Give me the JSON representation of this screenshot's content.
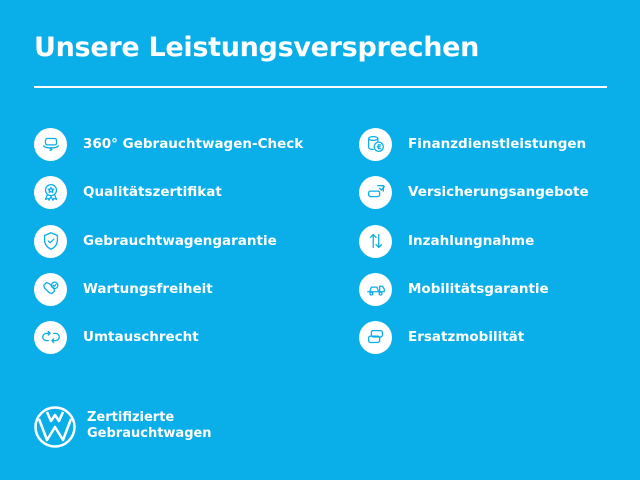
{
  "header": {
    "title": "Unsere Leistungsversprechen"
  },
  "left_items": [
    {
      "label": "360° Gebrauchtwagen-Check",
      "icon": "car-360-icon"
    },
    {
      "label": "Qualitätszertifikat",
      "icon": "award-badge-icon"
    },
    {
      "label": "Gebrauchtwagengarantie",
      "icon": "shield-check-icon"
    },
    {
      "label": "Wartungsfreiheit",
      "icon": "wrench-check-icon"
    },
    {
      "label": "Umtauschrecht",
      "icon": "exchange-arrows-icon"
    }
  ],
  "right_items": [
    {
      "label": "Finanzdienstleistungen",
      "icon": "coins-euro-icon"
    },
    {
      "label": "Versicherungsangebote",
      "icon": "car-insurance-icon"
    },
    {
      "label": "Inzahlungnahme",
      "icon": "up-down-arrows-icon"
    },
    {
      "label": "Mobilitätsgarantie",
      "icon": "tow-truck-icon"
    },
    {
      "label": "Ersatzmobilität",
      "icon": "replacement-cars-icon"
    }
  ],
  "footer": {
    "line1": "Zertifizierte",
    "line2": "Gebrauchtwagen",
    "logo": "vw-logo"
  },
  "colors": {
    "background": "#0aaee8",
    "foreground": "#ffffff"
  }
}
